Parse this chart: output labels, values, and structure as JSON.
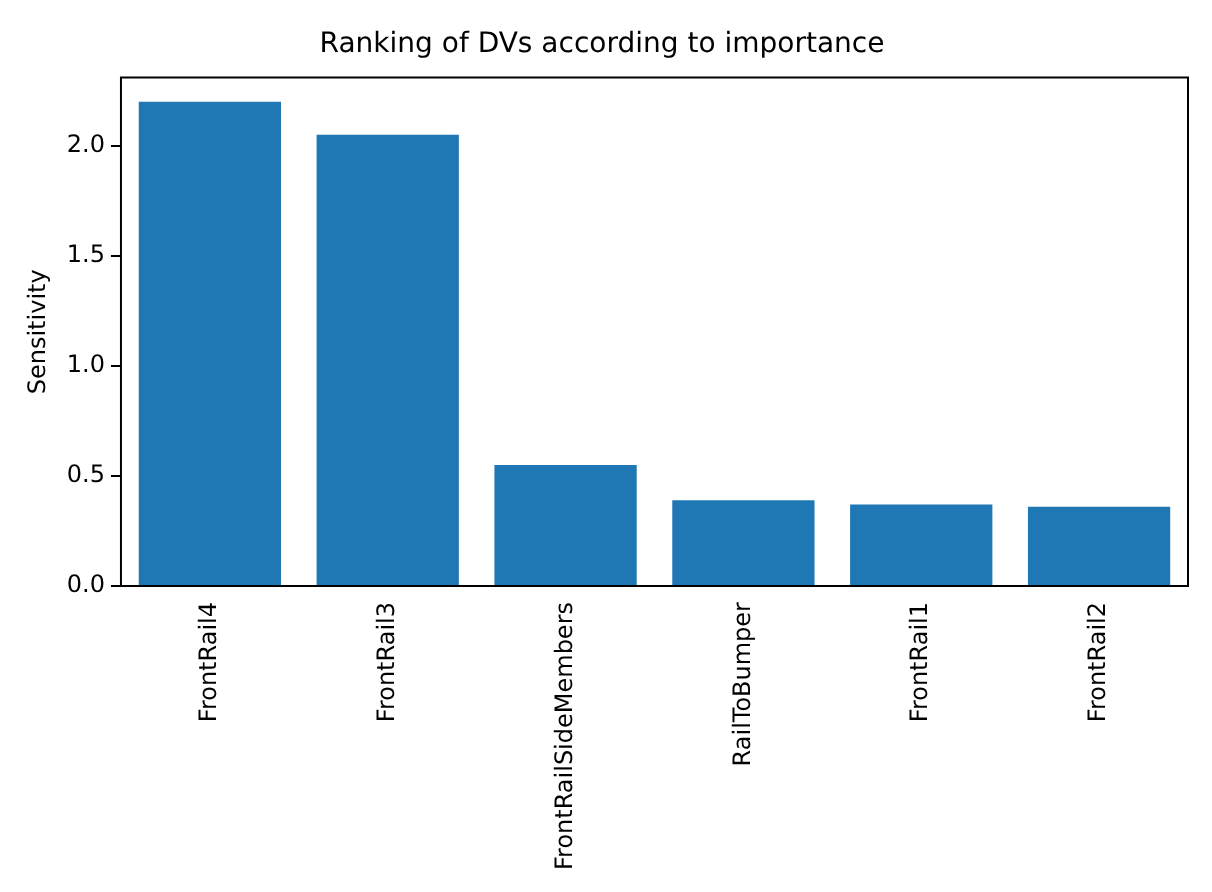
{
  "chart_data": {
    "type": "bar",
    "title": "Ranking of DVs according to importance",
    "ylabel": "Sensitivity",
    "categories": [
      "FrontRail4",
      "FrontRail3",
      "FrontRailSideMembers",
      "RailToBumper",
      "FrontRail1",
      "FrontRail2"
    ],
    "values": [
      2.2,
      2.05,
      0.55,
      0.39,
      0.37,
      0.36
    ],
    "color": "#1f77b4",
    "ylim": [
      0,
      2.31
    ],
    "yticks": [
      {
        "value": 0,
        "label": "0.0"
      },
      {
        "value": 0.5,
        "label": "0.5"
      },
      {
        "value": 1,
        "label": "1.0"
      },
      {
        "value": 1.5,
        "label": "1.5"
      },
      {
        "value": 2,
        "label": "2.0"
      }
    ],
    "grid": false,
    "legend": false
  }
}
